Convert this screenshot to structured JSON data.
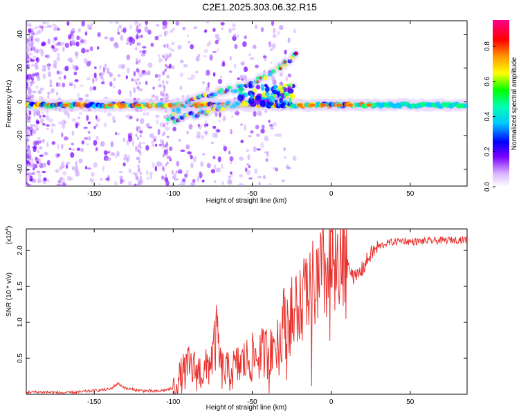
{
  "title": "C2E1.2025.303.06.32.R15",
  "chart_data": [
    {
      "type": "heatmap",
      "xlabel": "Height of straight line (km)",
      "ylabel": "Frequency (Hz)",
      "xlim": [
        -193,
        86
      ],
      "ylim": [
        -50,
        48
      ],
      "x_ticks": [
        -150,
        -100,
        -50,
        0,
        50
      ],
      "y_ticks": [
        -40,
        -20,
        0,
        20,
        40
      ],
      "colorbar": {
        "label": "Normalized spectral amplitude",
        "range": [
          0,
          0.95
        ],
        "ticks": [
          0.0,
          0.2,
          0.4,
          0.6,
          0.8
        ]
      },
      "features": [
        {
          "name": "central band",
          "x_range": [
            -193,
            86
          ],
          "frequency": -2
        },
        {
          "name": "upward branch",
          "points": [
            [
              -103,
              -10
            ],
            [
              -90,
              1
            ],
            [
              -70,
              6
            ],
            [
              -50,
              10
            ],
            [
              -30,
              22
            ],
            [
              -22,
              28
            ]
          ]
        },
        {
          "name": "lower branch",
          "points": [
            [
              -100,
              -11
            ],
            [
              -80,
              -6
            ],
            [
              -60,
              -1
            ],
            [
              -40,
              3
            ],
            [
              -25,
              8
            ]
          ]
        }
      ]
    },
    {
      "type": "line",
      "xlabel": "Height of straight line (km)",
      "ylabel": "SNR (10 * v/v)",
      "y_multiplier": "(x10^4)",
      "xlim": [
        -193,
        86
      ],
      "ylim": [
        0,
        2.3
      ],
      "x_ticks": [
        -150,
        -100,
        -50,
        0,
        50
      ],
      "y_ticks": [
        0.5,
        1.0,
        1.5,
        2.0
      ],
      "series": [
        {
          "color": "#e8302c",
          "x": [
            -193,
            -180,
            -170,
            -160,
            -150,
            -140,
            -135,
            -130,
            -120,
            -110,
            -100,
            -95,
            -90,
            -85,
            -80,
            -75,
            -72,
            -70,
            -65,
            -60,
            -55,
            -50,
            -45,
            -40,
            -35,
            -30,
            -25,
            -20,
            -15,
            -10,
            -5,
            0,
            5,
            10,
            15,
            20,
            25,
            30,
            35,
            40,
            45,
            50,
            60,
            70,
            80,
            86
          ],
          "y": [
            0.03,
            0.03,
            0.02,
            0.03,
            0.05,
            0.07,
            0.15,
            0.08,
            0.05,
            0.04,
            0.08,
            0.25,
            0.38,
            0.32,
            0.3,
            0.55,
            0.85,
            0.35,
            0.3,
            0.38,
            0.45,
            0.5,
            0.55,
            0.6,
            0.8,
            1.0,
            1.1,
            1.25,
            1.4,
            1.5,
            1.65,
            1.75,
            1.55,
            1.9,
            1.6,
            1.75,
            1.95,
            2.05,
            2.1,
            2.12,
            2.14,
            2.12,
            2.13,
            2.14,
            2.15,
            2.15
          ]
        }
      ]
    }
  ]
}
